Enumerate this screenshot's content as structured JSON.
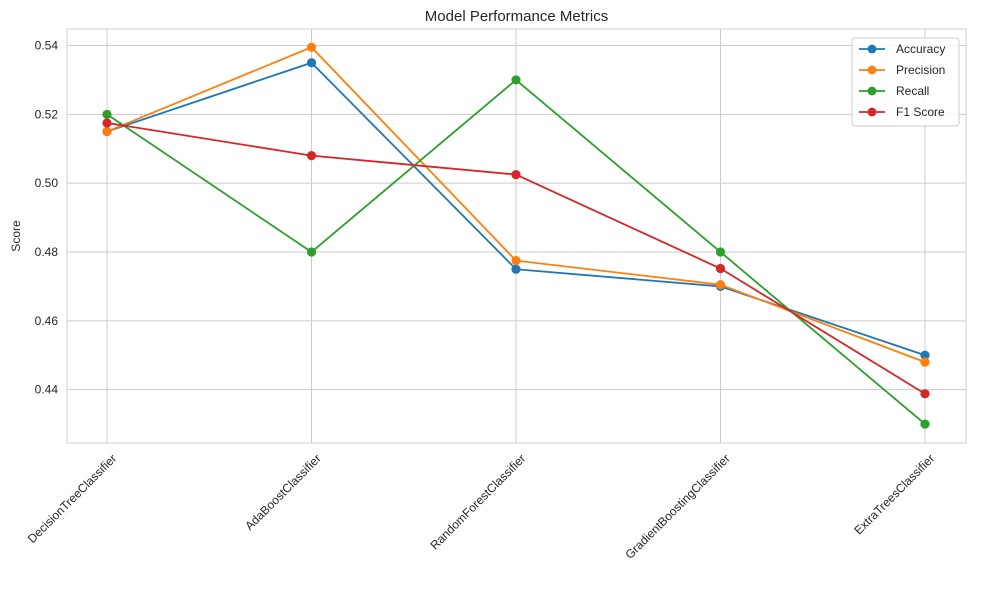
{
  "chart_data": {
    "type": "line",
    "title": "Model Performance Metrics",
    "xlabel": "",
    "ylabel": "Score",
    "categories": [
      "DecisionTreeClassifier",
      "AdaBoostClassifier",
      "RandomForestClassifier",
      "GradientBoostingClassifier",
      "ExtraTreesClassifier"
    ],
    "ylim": [
      0.4245,
      0.5448
    ],
    "yticks": [
      "0.44",
      "0.46",
      "0.48",
      "0.50",
      "0.52",
      "0.54"
    ],
    "grid": true,
    "legend_position": "top-right",
    "series": [
      {
        "name": "Accuracy",
        "color": "#1f77b4",
        "values": [
          0.515,
          0.535,
          0.475,
          0.47,
          0.45
        ]
      },
      {
        "name": "Precision",
        "color": "#ff7f0e",
        "values": [
          0.515,
          0.5395,
          0.4775,
          0.4705,
          0.448
        ]
      },
      {
        "name": "Recall",
        "color": "#2ca02c",
        "values": [
          0.52,
          0.48,
          0.53,
          0.48,
          0.43
        ]
      },
      {
        "name": "F1 Score",
        "color": "#d62728",
        "values": [
          0.5175,
          0.508,
          0.5025,
          0.4752,
          0.4388
        ]
      }
    ]
  }
}
